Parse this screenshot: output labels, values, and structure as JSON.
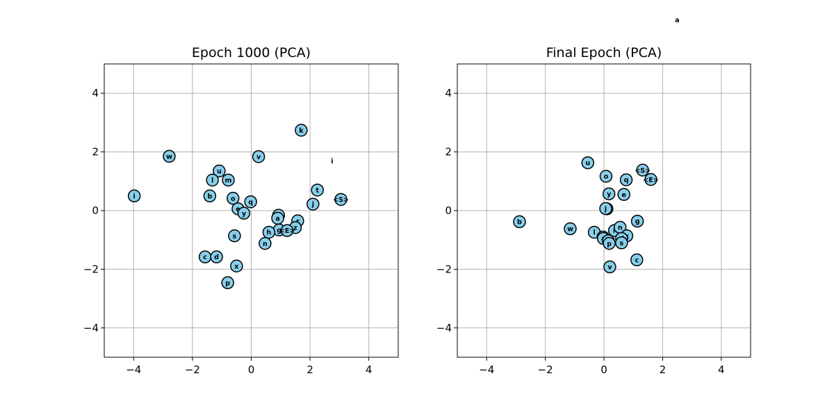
{
  "chart_data": [
    {
      "type": "scatter",
      "title": "Epoch 1000 (PCA)",
      "xlim": [
        -5,
        5
      ],
      "ylim": [
        -5,
        5
      ],
      "xticks": [
        -4,
        -2,
        0,
        2,
        4
      ],
      "yticks": [
        -4,
        -2,
        0,
        2,
        4
      ],
      "grid": true,
      "marker_color": "#87ceeb",
      "points": [
        {
          "label": "i",
          "x": -3.98,
          "y": 0.5
        },
        {
          "label": "w",
          "x": -2.79,
          "y": 1.85
        },
        {
          "label": "u",
          "x": -1.09,
          "y": 1.35
        },
        {
          "label": "l",
          "x": -1.32,
          "y": 1.04
        },
        {
          "label": "m",
          "x": -0.78,
          "y": 1.04
        },
        {
          "label": "b",
          "x": -1.41,
          "y": 0.5
        },
        {
          "label": "o",
          "x": -0.62,
          "y": 0.42
        },
        {
          "label": "q",
          "x": -0.02,
          "y": 0.3
        },
        {
          "label": "e",
          "x": -0.45,
          "y": 0.06
        },
        {
          "label": "y",
          "x": -0.25,
          "y": -0.09
        },
        {
          "label": "v",
          "x": 0.25,
          "y": 1.84
        },
        {
          "label": "k",
          "x": 1.7,
          "y": 2.74
        },
        {
          "label": "t",
          "x": 2.25,
          "y": 0.7
        },
        {
          "label": "<S>",
          "x": 3.05,
          "y": 0.38
        },
        {
          "label": "j",
          "x": 2.1,
          "y": 0.22
        },
        {
          "label": "f",
          "x": 0.93,
          "y": -0.16
        },
        {
          "label": "a",
          "x": 0.9,
          "y": -0.26
        },
        {
          "label": "r",
          "x": 1.58,
          "y": -0.35
        },
        {
          "label": "z",
          "x": 1.5,
          "y": -0.58
        },
        {
          "label": "g",
          "x": 0.95,
          "y": -0.66
        },
        {
          "label": "<E>",
          "x": 1.22,
          "y": -0.68
        },
        {
          "label": "h",
          "x": 0.6,
          "y": -0.74
        },
        {
          "label": "s",
          "x": -0.57,
          "y": -0.86
        },
        {
          "label": "n",
          "x": 0.47,
          "y": -1.12
        },
        {
          "label": "c",
          "x": -1.57,
          "y": -1.58
        },
        {
          "label": "d",
          "x": -1.18,
          "y": -1.58
        },
        {
          "label": "x",
          "x": -0.5,
          "y": -1.89
        },
        {
          "label": "p",
          "x": -0.8,
          "y": -2.46
        }
      ]
    },
    {
      "type": "scatter",
      "title": "Final Epoch (PCA)",
      "xlim": [
        -5,
        5
      ],
      "ylim": [
        -5,
        5
      ],
      "xticks": [
        -4,
        -2,
        0,
        2,
        4
      ],
      "yticks": [
        -4,
        -2,
        0,
        2,
        4
      ],
      "grid": true,
      "marker_color": "#87ceeb",
      "points": [
        {
          "label": "b",
          "x": -2.88,
          "y": -0.38
        },
        {
          "label": "w",
          "x": -1.15,
          "y": -0.62
        },
        {
          "label": "u",
          "x": -0.55,
          "y": 1.63
        },
        {
          "label": "o",
          "x": 0.07,
          "y": 1.17
        },
        {
          "label": "q",
          "x": 0.76,
          "y": 1.05
        },
        {
          "label": "<S>",
          "x": 1.32,
          "y": 1.38
        },
        {
          "label": "<E>",
          "x": 1.6,
          "y": 1.06
        },
        {
          "label": "y",
          "x": 0.17,
          "y": 0.57
        },
        {
          "label": "e",
          "x": 0.68,
          "y": 0.55
        },
        {
          "label": "h",
          "x": 0.1,
          "y": 0.06
        },
        {
          "label": "j",
          "x": 0.06,
          "y": 0.07
        },
        {
          "label": "g",
          "x": 1.14,
          "y": -0.36
        },
        {
          "label": "l",
          "x": -0.33,
          "y": -0.74
        },
        {
          "label": "r",
          "x": 0.36,
          "y": -0.68
        },
        {
          "label": "n",
          "x": 0.55,
          "y": -0.57
        },
        {
          "label": "x",
          "x": 0.78,
          "y": -0.86
        },
        {
          "label": "m",
          "x": -0.03,
          "y": -0.9
        },
        {
          "label": "a",
          "x": -0.02,
          "y": -0.95
        },
        {
          "label": "z",
          "x": 0.15,
          "y": -1.03
        },
        {
          "label": "d",
          "x": 0.6,
          "y": -0.95
        },
        {
          "label": "s",
          "x": 0.6,
          "y": -1.1
        },
        {
          "label": "p",
          "x": 0.18,
          "y": -1.12
        },
        {
          "label": "c",
          "x": 1.12,
          "y": -1.68
        },
        {
          "label": "v",
          "x": 0.2,
          "y": -1.92
        }
      ]
    }
  ],
  "outside_labels": [
    {
      "label": "a",
      "panel": 1,
      "x": 2.5,
      "y": 6.5
    },
    {
      "label": "i",
      "panel": 0,
      "x": 2.75,
      "y": 1.7
    }
  ]
}
